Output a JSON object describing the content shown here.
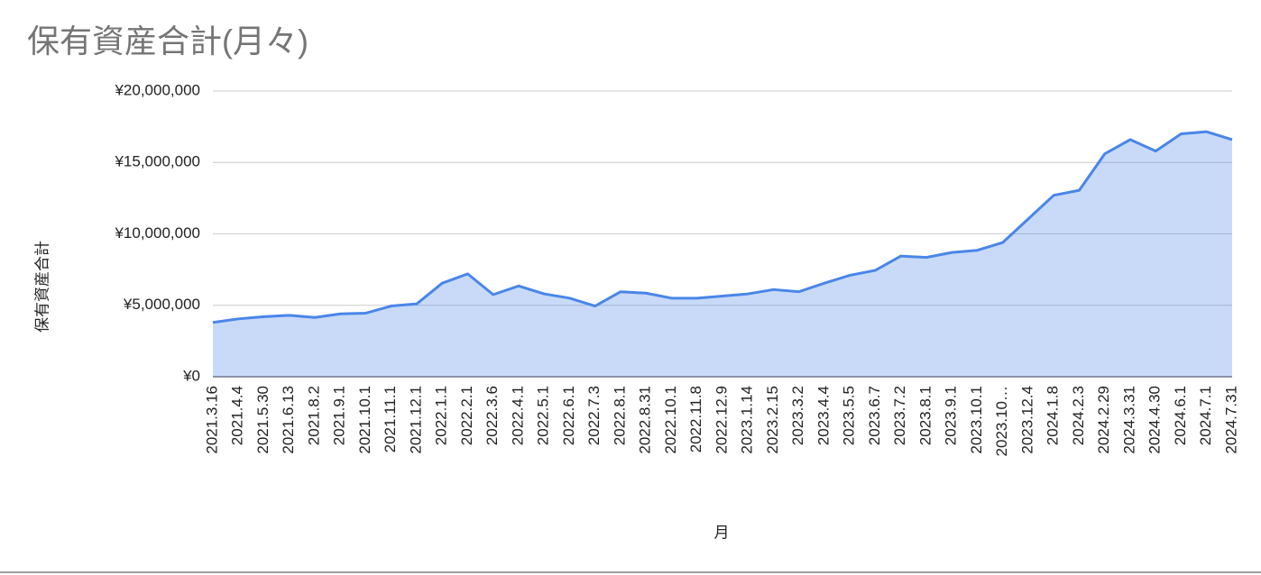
{
  "chart_data": {
    "type": "area",
    "title": "保有資産合計(月々)",
    "y_label": "保有資産合計",
    "x_label": "月",
    "categories": [
      "2021.3.16",
      "2021.4.4",
      "2021.5.30",
      "2021.6.13",
      "2021.8.2",
      "2021.9.1",
      "2021.10.1",
      "2021.11.1",
      "2021.12.1",
      "2022.1.1",
      "2022.2.1",
      "2022.3.6",
      "2022.4.1",
      "2022.5.1",
      "2022.6.1",
      "2022.7.3",
      "2022.8.1",
      "2022.8.31",
      "2022.10.1",
      "2022.11.8",
      "2022.12.9",
      "2023.1.14",
      "2023.2.15",
      "2023.3.2",
      "2023.4.4",
      "2023.5.5",
      "2023.6.7",
      "2023.7.2",
      "2023.8.1",
      "2023.9.1",
      "2023.10.1",
      "2023.10…",
      "2023.12.4",
      "2024.1.8",
      "2024.2.3",
      "2024.2.29",
      "2024.3.31",
      "2024.4.30",
      "2024.6.1",
      "2024.7.1",
      "2024.7.31"
    ],
    "values": [
      3800000,
      4050000,
      4200000,
      4300000,
      4150000,
      4400000,
      4450000,
      4950000,
      5100000,
      6550000,
      7200000,
      5750000,
      6350000,
      5800000,
      5500000,
      4950000,
      5950000,
      5850000,
      5500000,
      5500000,
      5650000,
      5800000,
      6100000,
      5950000,
      6550000,
      7100000,
      7450000,
      8450000,
      8350000,
      8700000,
      8850000,
      9400000,
      11050000,
      12700000,
      13050000,
      15600000,
      16600000,
      15800000,
      17000000,
      17150000,
      16600000
    ],
    "color": "#4a86e8",
    "ylim": [
      0,
      20000000
    ],
    "yticks": [
      {
        "value": 0,
        "label": "¥0"
      },
      {
        "value": 5000000,
        "label": "¥5,000,000"
      },
      {
        "value": 10000000,
        "label": "¥10,000,000"
      },
      {
        "value": 15000000,
        "label": "¥15,000,000"
      },
      {
        "value": 20000000,
        "label": "¥20,000,000"
      }
    ],
    "grid": true
  }
}
